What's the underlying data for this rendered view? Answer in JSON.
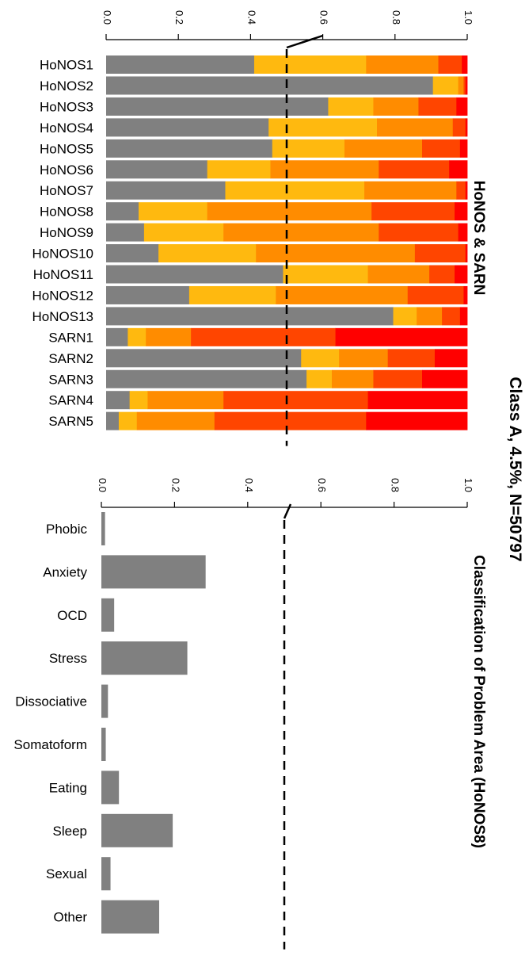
{
  "main_title": "Class A, 4.5%, N=50797",
  "chart_data": [
    {
      "type": "bar",
      "stacked": true,
      "orientation": "horizontal",
      "title": "HoNOS & SARN",
      "xlim": [
        0,
        1
      ],
      "ticks": [
        "0.0",
        "0.2",
        "0.4",
        "0.6",
        "0.8",
        "1.0"
      ],
      "reference_line": 0.5,
      "categories": [
        "HoNOS1",
        "HoNOS2",
        "HoNOS3",
        "HoNOS4",
        "HoNOS5",
        "HoNOS6",
        "HoNOS7",
        "HoNOS8",
        "HoNOS9",
        "HoNOS10",
        "HoNOS11",
        "HoNOS12",
        "HoNOS13",
        "SARN1",
        "SARN2",
        "SARN3",
        "SARN4",
        "SARN5"
      ],
      "segment_colors": [
        "#808080",
        "#FFB90F",
        "#FF8C00",
        "#FF4500",
        "#FF0000"
      ],
      "segments": [
        [
          0.41,
          0.31,
          0.2,
          0.065,
          0.015
        ],
        [
          0.905,
          0.07,
          0.015,
          0.005,
          0.005
        ],
        [
          0.615,
          0.125,
          0.125,
          0.105,
          0.03
        ],
        [
          0.45,
          0.3,
          0.21,
          0.035,
          0.005
        ],
        [
          0.46,
          0.2,
          0.215,
          0.105,
          0.02
        ],
        [
          0.28,
          0.175,
          0.3,
          0.195,
          0.05
        ],
        [
          0.33,
          0.385,
          0.255,
          0.025,
          0.005
        ],
        [
          0.09,
          0.19,
          0.455,
          0.23,
          0.035
        ],
        [
          0.105,
          0.22,
          0.43,
          0.22,
          0.025
        ],
        [
          0.145,
          0.27,
          0.44,
          0.14,
          0.005
        ],
        [
          0.49,
          0.235,
          0.17,
          0.07,
          0.035
        ],
        [
          0.23,
          0.24,
          0.365,
          0.155,
          0.01
        ],
        [
          0.795,
          0.065,
          0.07,
          0.05,
          0.02
        ],
        [
          0.06,
          0.05,
          0.125,
          0.4,
          0.365
        ],
        [
          0.54,
          0.105,
          0.135,
          0.13,
          0.09
        ],
        [
          0.555,
          0.07,
          0.115,
          0.135,
          0.125
        ],
        [
          0.065,
          0.05,
          0.21,
          0.4,
          0.275
        ],
        [
          0.035,
          0.05,
          0.215,
          0.42,
          0.28
        ]
      ]
    },
    {
      "type": "bar",
      "orientation": "horizontal",
      "title": "Classification of Problem Area (HoNOS8)",
      "xlim": [
        0,
        1
      ],
      "ticks": [
        "0.0",
        "0.2",
        "0.4",
        "0.6",
        "0.8",
        "1.0"
      ],
      "reference_line": 0.5,
      "categories": [
        "Phobic",
        "Anxiety",
        "OCD",
        "Stress",
        "Dissociative",
        "Somatoform",
        "Eating",
        "Sleep",
        "Sexual",
        "Other"
      ],
      "values": [
        0.01,
        0.285,
        0.035,
        0.235,
        0.018,
        0.012,
        0.048,
        0.195,
        0.025,
        0.158
      ],
      "bar_color": "#808080"
    }
  ]
}
